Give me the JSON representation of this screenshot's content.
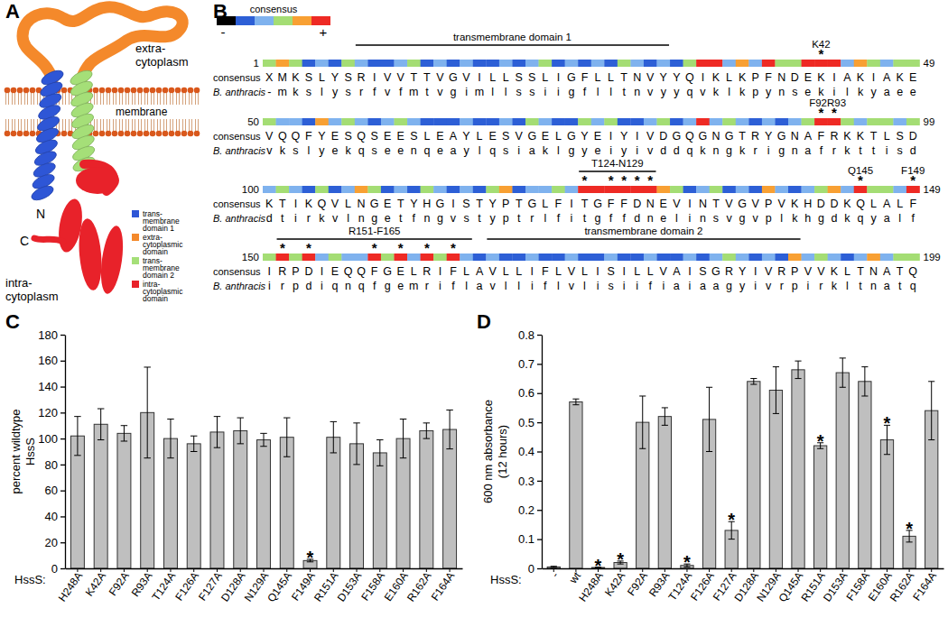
{
  "diagram": {
    "panel": "A",
    "extra": [
      "extra-",
      "cytoplasm"
    ],
    "membrane": "membrane",
    "n_terminus": "N",
    "c_terminus": "C",
    "intra": [
      "intra-",
      "cytoplasm"
    ],
    "legend": [
      {
        "lines": [
          "trans-",
          "membrane",
          "domain 1"
        ],
        "color": "#2e56d6"
      },
      {
        "lines": [
          "extra-",
          "cytoplasmic",
          "domain"
        ],
        "color": "#f4892b"
      },
      {
        "lines": [
          "trans-",
          "membrane",
          "domain 2"
        ],
        "color": "#a5df78"
      },
      {
        "lines": [
          "intra-",
          "cytoplasmic",
          "domain"
        ],
        "color": "#e8222a"
      }
    ]
  },
  "alignment": {
    "panel": "B",
    "scale": {
      "label": "consensus",
      "low": "-",
      "high": "+",
      "colors": [
        "#000000",
        "#2d5fd6",
        "#7fb2ee",
        "#a4dd74",
        "#f8a033",
        "#ee2a24"
      ]
    },
    "row_labels": [
      "consensus",
      "B. anthracis"
    ],
    "star": "*",
    "rows": [
      {
        "start": 1,
        "end": 49,
        "consensus": "XMKSLYSRIVVTTVGVILLSSLIGFLLTNVYYQIKLKPFNDEKIAKIAKE",
        "b_anthracis": "-mkslysrfvfmtvgimllssiigflltnvyyqvklkpynsekilkyaee",
        "conservation": [
          3,
          4,
          3,
          1,
          2,
          1,
          3,
          2,
          1,
          1,
          2,
          3,
          1,
          2,
          1,
          2,
          1,
          1,
          2,
          1,
          2,
          3,
          1,
          2,
          1,
          2,
          1,
          3,
          2,
          1,
          2,
          1,
          3,
          5,
          5,
          2,
          4,
          2,
          5,
          3,
          3,
          5,
          5,
          5,
          2,
          4,
          3,
          2,
          3,
          3
        ],
        "annotations": [
          {
            "label": "transmembrane domain 1",
            "span": [
              7,
              30
            ]
          },
          {
            "label": "K42",
            "stars": [
              42
            ]
          }
        ]
      },
      {
        "start": 50,
        "end": 99,
        "consensus": "VQQFYESQSEESLEAYLESVGELGYEIYIVDGQGNGTRYGNAFRKKTLSD",
        "b_anthracis": "vkslyekqseenqeaylqsiaklgyeiyivddqkngkrignafrkttisd",
        "conservation": [
          3,
          2,
          2,
          1,
          4,
          2,
          3,
          2,
          1,
          2,
          3,
          2,
          1,
          1,
          1,
          2,
          1,
          1,
          2,
          1,
          3,
          2,
          1,
          1,
          3,
          2,
          3,
          1,
          1,
          2,
          3,
          1,
          2,
          5,
          2,
          3,
          2,
          1,
          2,
          1,
          2,
          3,
          5,
          5,
          3,
          2,
          3,
          3,
          2,
          3
        ],
        "annotations": [
          {
            "label": "F92R93",
            "stars": [
              42,
              43
            ]
          }
        ]
      },
      {
        "start": 100,
        "end": 149,
        "consensus": "KTIKQVLNGETYHGISTYPTGLFITGFFDNEVINTVGVPVKHDDKQLALF",
        "b_anthracis": "dtirkvlngetfngvstyptrlfitgffdnelinsvgvplkhgdkqyalf",
        "conservation": [
          2,
          3,
          2,
          1,
          3,
          1,
          2,
          4,
          3,
          1,
          2,
          1,
          3,
          2,
          1,
          2,
          1,
          3,
          4,
          1,
          2,
          2,
          3,
          2,
          5,
          5,
          5,
          5,
          5,
          5,
          4,
          3,
          1,
          2,
          3,
          1,
          2,
          1,
          4,
          2,
          1,
          2,
          3,
          4,
          2,
          5,
          3,
          3,
          2,
          5
        ],
        "annotations": [
          {
            "label": "T124-N129",
            "span": [
              24,
              29
            ],
            "stars": [
              24,
              26,
              27,
              28,
              29
            ]
          },
          {
            "label": "Q145",
            "stars": [
              45
            ]
          },
          {
            "label": "F149",
            "stars": [
              49
            ]
          }
        ]
      },
      {
        "start": 150,
        "end": 199,
        "consensus": "IRPDIEQQFGELRIFLAVLLIFLVLISILLVAISGRYIVRPVVKLTNATQ",
        "b_anthracis": "irpdiqnqfgemriflavlliflvlisiifiaiaagyivrpirkltnatq",
        "conservation": [
          3,
          5,
          3,
          5,
          2,
          3,
          2,
          2,
          5,
          3,
          5,
          2,
          5,
          3,
          5,
          2,
          1,
          2,
          1,
          1,
          2,
          1,
          1,
          2,
          1,
          1,
          2,
          1,
          1,
          2,
          1,
          1,
          2,
          1,
          2,
          3,
          2,
          1,
          2,
          1,
          4,
          2,
          3,
          2,
          1,
          2,
          4,
          2,
          3,
          3
        ],
        "annotations": [
          {
            "label": "R151-F165",
            "span": [
              1,
              15
            ],
            "stars": [
              1,
              3,
              8,
              10,
              12,
              14
            ]
          },
          {
            "label": "transmembrane domain 2",
            "span": [
              17,
              40
            ]
          }
        ]
      }
    ]
  },
  "chart_data": [
    {
      "panel": "C",
      "type": "bar",
      "categories": [
        "H248A",
        "K42A",
        "F92A",
        "R93A",
        "T124A",
        "F126A",
        "F127A",
        "D128A",
        "N129A",
        "Q145A",
        "F149A",
        "R151A",
        "D153A",
        "F158A",
        "E160A",
        "R162A",
        "F164A"
      ],
      "values": [
        102,
        111,
        104,
        120,
        100,
        96,
        105,
        106,
        99,
        101,
        6,
        101,
        96,
        89,
        100,
        106,
        107
      ],
      "errors": [
        15,
        12,
        6,
        35,
        15,
        6,
        12,
        10,
        5,
        15,
        1,
        12,
        16,
        10,
        15,
        6,
        15
      ],
      "color": "#bfbfbf",
      "ylim": [
        0,
        180
      ],
      "yticks": [
        0,
        20,
        40,
        60,
        80,
        100,
        120,
        140,
        160,
        180
      ],
      "ylabel": [
        "percent wildtype",
        "HssS"
      ],
      "xlabel": "HssS:",
      "annotations": [
        {
          "text": "*",
          "category": "F149A"
        }
      ]
    },
    {
      "panel": "D",
      "type": "bar",
      "categories": [
        "-",
        "wt",
        "H248A",
        "K42A",
        "F92A",
        "R93A",
        "T124A",
        "F126A",
        "F127A",
        "D128A",
        "N129A",
        "Q145A",
        "R151A",
        "D153A",
        "F158A",
        "E160A",
        "R162A",
        "F164A"
      ],
      "values": [
        0.005,
        0.57,
        0.003,
        0.02,
        0.5,
        0.52,
        0.01,
        0.51,
        0.13,
        0.64,
        0.61,
        0.68,
        0.42,
        0.67,
        0.64,
        0.44,
        0.11,
        0.54
      ],
      "errors": [
        0.002,
        0.01,
        0.001,
        0.005,
        0.09,
        0.03,
        0.005,
        0.11,
        0.03,
        0.01,
        0.08,
        0.03,
        0.01,
        0.05,
        0.05,
        0.05,
        0.02,
        0.1
      ],
      "color": "#bfbfbf",
      "ylim": [
        0,
        0.8
      ],
      "yticks": [
        0,
        0.1,
        0.2,
        0.3,
        0.4,
        0.5,
        0.6,
        0.7,
        0.8
      ],
      "ylabel": [
        "600 nm absorbance",
        "(12 hours)"
      ],
      "xlabel": "HssS:",
      "annotations": [
        {
          "text": "*",
          "category": "H248A"
        },
        {
          "text": "*",
          "category": "K42A"
        },
        {
          "text": "*",
          "category": "T124A"
        },
        {
          "text": "*",
          "category": "F127A"
        },
        {
          "text": "*",
          "category": "R151A"
        },
        {
          "text": "*",
          "category": "E160A"
        },
        {
          "text": "*",
          "category": "R162A"
        }
      ]
    }
  ]
}
